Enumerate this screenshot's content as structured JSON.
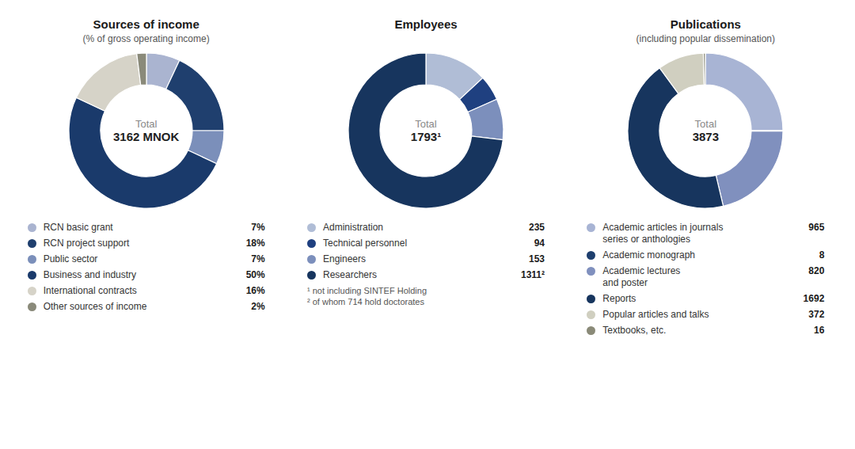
{
  "chart_data": [
    {
      "type": "pie",
      "title": "Sources of income",
      "subtitle": "(% of gross operating income)",
      "annotations": [
        "Total",
        "3162 MNOK"
      ],
      "categories": [
        "RCN basic grant",
        "RCN project support",
        "Public sector",
        "Business and industry",
        "International contracts",
        "Other sources of income"
      ],
      "values": [
        7,
        18,
        7,
        50,
        16,
        2
      ],
      "value_labels": [
        "7%",
        "18%",
        "7%",
        "50%",
        "16%",
        "2%"
      ],
      "colors": [
        "#aab4d0",
        "#1f3f6e",
        "#7b8fba",
        "#1a3a6b",
        "#d6d3c8",
        "#8a8a7a"
      ]
    },
    {
      "type": "pie",
      "title": "Employees",
      "annotations": [
        "Total",
        "1793¹",
        "¹ not including SINTEF Holding",
        "² of whom 714 hold doctorates"
      ],
      "categories": [
        "Administration",
        "Technical personnel",
        "Engineers",
        "Researchers"
      ],
      "values": [
        235,
        94,
        153,
        1311
      ],
      "value_labels": [
        "235",
        "94",
        "153",
        "1311²"
      ],
      "colors": [
        "#b0bdd6",
        "#1f4080",
        "#7c8fbc",
        "#17355e"
      ]
    },
    {
      "type": "pie",
      "title": "Publications",
      "subtitle": "(including popular dissemination)",
      "annotations": [
        "Total",
        "3873"
      ],
      "categories": [
        "Academic articles in journals\nseries or anthologies",
        "Academic monograph",
        "Academic lectures\nand poster",
        "Reports",
        "Popular articles and talks",
        "Textbooks, etc."
      ],
      "values": [
        965,
        8,
        820,
        1692,
        372,
        16
      ],
      "value_labels": [
        "965",
        "8",
        "820",
        "1692",
        "372",
        "16"
      ],
      "colors": [
        "#a8b4d4",
        "#1e3f6e",
        "#8090be",
        "#17355e",
        "#d0cfc0",
        "#8a8a78"
      ]
    }
  ]
}
